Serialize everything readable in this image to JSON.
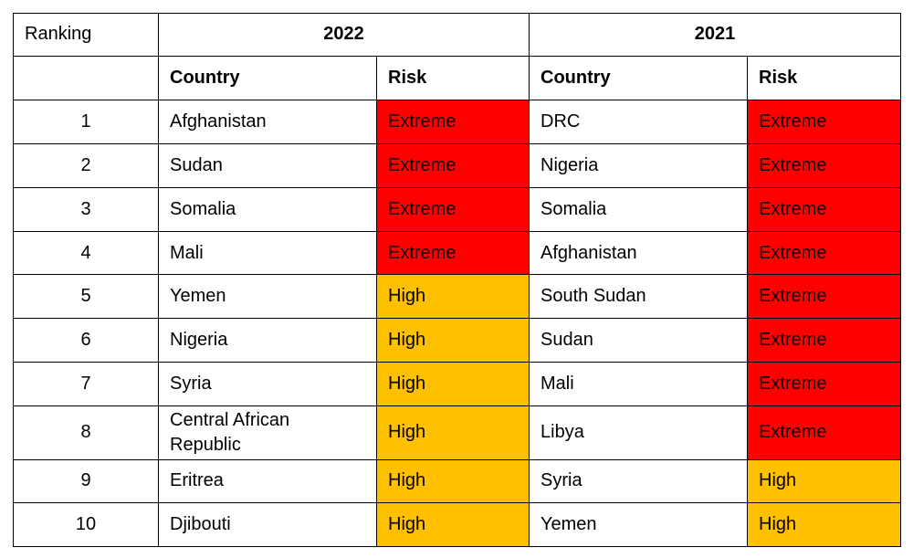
{
  "table": {
    "ranking_header": "Ranking",
    "year_a": "2022",
    "year_b": "2021",
    "country_header": "Country",
    "risk_header": "Risk",
    "colors": {
      "extreme": "#ff0000",
      "high": "#ffc000"
    },
    "rows": [
      {
        "rank": "1",
        "country_2022": "Afghanistan",
        "risk_2022": "Extreme",
        "country_2021": "DRC",
        "risk_2021": "Extreme"
      },
      {
        "rank": "2",
        "country_2022": "Sudan",
        "risk_2022": "Extreme",
        "country_2021": "Nigeria",
        "risk_2021": "Extreme"
      },
      {
        "rank": "3",
        "country_2022": "Somalia",
        "risk_2022": "Extreme",
        "country_2021": "Somalia",
        "risk_2021": "Extreme"
      },
      {
        "rank": "4",
        "country_2022": "Mali",
        "risk_2022": "Extreme",
        "country_2021": "Afghanistan",
        "risk_2021": "Extreme"
      },
      {
        "rank": "5",
        "country_2022": "Yemen",
        "risk_2022": "High",
        "country_2021": "South Sudan",
        "risk_2021": "Extreme"
      },
      {
        "rank": "6",
        "country_2022": "Nigeria",
        "risk_2022": "High",
        "country_2021": "Sudan",
        "risk_2021": "Extreme"
      },
      {
        "rank": "7",
        "country_2022": "Syria",
        "risk_2022": "High",
        "country_2021": "Mali",
        "risk_2021": "Extreme"
      },
      {
        "rank": "8",
        "country_2022": "Central African Republic",
        "risk_2022": "High",
        "country_2021": "Libya",
        "risk_2021": "Extreme"
      },
      {
        "rank": "9",
        "country_2022": "Eritrea",
        "risk_2022": "High",
        "country_2021": "Syria",
        "risk_2021": "High"
      },
      {
        "rank": "10",
        "country_2022": "Djibouti",
        "risk_2022": "High",
        "country_2021": "Yemen",
        "risk_2021": "High"
      }
    ]
  }
}
